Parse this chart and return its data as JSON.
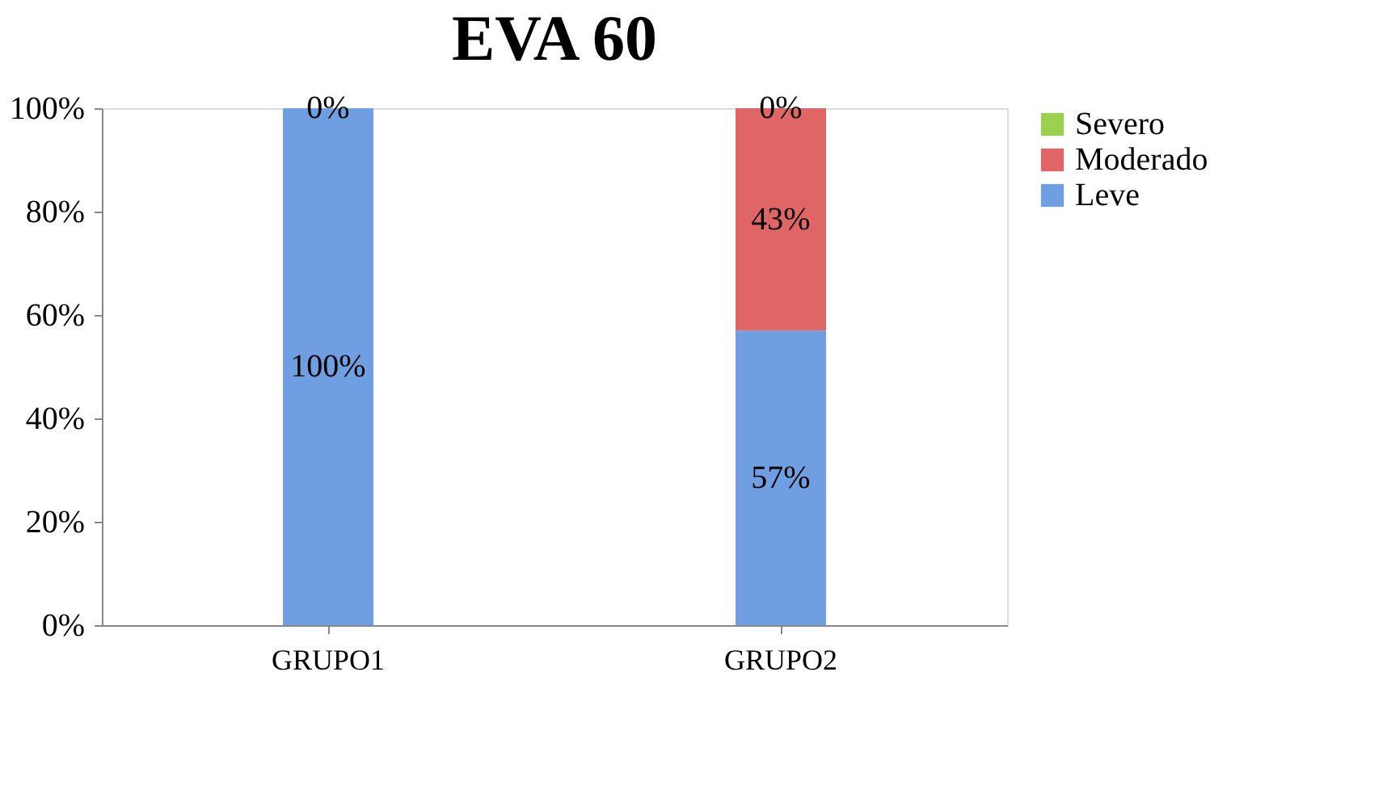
{
  "chart_data": {
    "type": "bar",
    "title": "EVA 60",
    "categories": [
      "GRUPO1",
      "GRUPO2"
    ],
    "stacked": true,
    "series": [
      {
        "name": "Leve",
        "color": "#6f9fe0",
        "values": [
          100,
          57
        ],
        "value_labels": [
          "100%",
          "57%"
        ]
      },
      {
        "name": "Moderado",
        "color": "#e06666",
        "values": [
          0,
          43
        ],
        "value_labels": [
          null,
          "43%"
        ]
      },
      {
        "name": "Severo",
        "color": "#9bd050",
        "values": [
          0,
          0
        ],
        "value_labels": [
          "0%",
          "0%"
        ]
      }
    ],
    "ylim": [
      0,
      100
    ],
    "yticks": [
      {
        "value": 0,
        "label": "0%"
      },
      {
        "value": 20,
        "label": "20%"
      },
      {
        "value": 40,
        "label": "40%"
      },
      {
        "value": 60,
        "label": "60%"
      },
      {
        "value": 80,
        "label": "80%"
      },
      {
        "value": 100,
        "label": "100%"
      }
    ],
    "grid": false,
    "legend": "right"
  }
}
